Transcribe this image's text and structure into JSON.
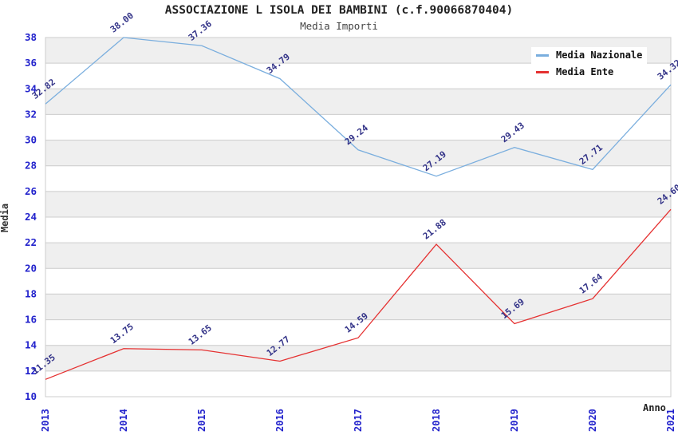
{
  "chart_data": {
    "type": "line",
    "title": "ASSOCIAZIONE L ISOLA DEI BAMBINI (c.f.90066870404)",
    "subtitle": "Media Importi",
    "xlabel": "Anno",
    "ylabel": "Media",
    "x": [
      "2013",
      "2014",
      "2015",
      "2016",
      "2017",
      "2018",
      "2019",
      "2020",
      "2021"
    ],
    "ylim": [
      10,
      38
    ],
    "ytick_step": 2,
    "grid": "horizontal-gridlines-with-alternating-bands",
    "legend_position": "top-right-inside",
    "series": [
      {
        "name": "Media Nazionale",
        "color": "#7aaede",
        "values": [
          32.82,
          38.0,
          37.36,
          34.79,
          29.24,
          27.19,
          29.43,
          27.71,
          34.32
        ]
      },
      {
        "name": "Media Ente",
        "color": "#e53131",
        "values": [
          11.35,
          13.75,
          13.65,
          12.77,
          14.59,
          21.88,
          15.69,
          17.64,
          24.6
        ]
      }
    ],
    "colors": {
      "tick_label": "#2222cc",
      "point_label": "#333388",
      "band": "#efefef",
      "gridline": "#cccccc",
      "axis_title": "#333333",
      "title_text": "#222222"
    }
  }
}
